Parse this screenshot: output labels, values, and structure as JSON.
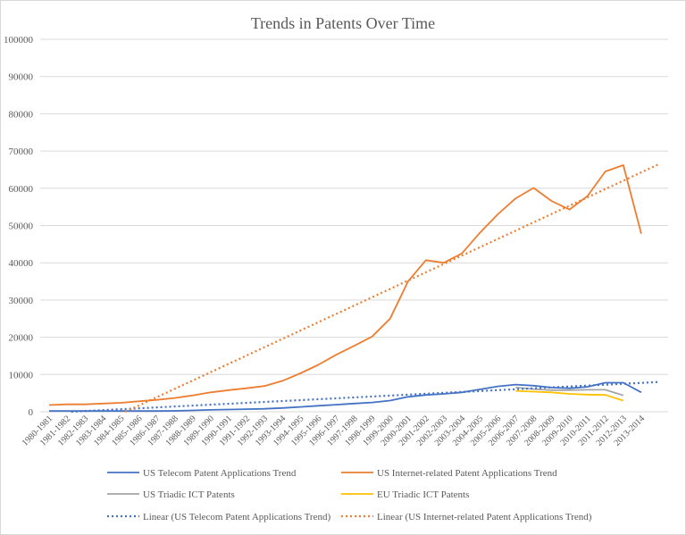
{
  "chart_data": {
    "type": "line",
    "title": "Trends in Patents Over Time",
    "xlabel": "",
    "ylabel": "",
    "ylim": [
      0,
      100000
    ],
    "yticks": [
      "0",
      "10000",
      "20000",
      "30000",
      "40000",
      "50000",
      "60000",
      "70000",
      "80000",
      "90000",
      "100000"
    ],
    "grid": true,
    "legend_position": "bottom",
    "categories": [
      "1980-1981",
      "1981-1982",
      "1982-1983",
      "1983-1984",
      "1984-1985",
      "1985-1986",
      "1986-1987",
      "1987-1988",
      "1988-1989",
      "1989-1990",
      "1990-1991",
      "1991-1992",
      "1992-1993",
      "1993-1994",
      "1994-1995",
      "1995-1996",
      "1996-1997",
      "1997-1998",
      "1998-1999",
      "1999-2000",
      "2000-2001",
      "2001-2002",
      "2002-2003",
      "2003-2004",
      "2004-2005",
      "2005-2006",
      "2006-2007",
      "2007-2008",
      "2008-2009",
      "2009-2010",
      "2010-2011",
      "2011-2012",
      "2012-2013",
      "2013-2014"
    ],
    "series": [
      {
        "name": "US Telecom Patent Applications Trend",
        "color": "#4472c4",
        "style": "solid",
        "values": [
          200,
          200,
          200,
          200,
          200,
          200,
          200,
          250,
          350,
          500,
          600,
          700,
          800,
          1000,
          1300,
          1600,
          1900,
          2200,
          2500,
          3000,
          4000,
          4500,
          4800,
          5200,
          6000,
          6800,
          7300,
          7000,
          6500,
          6300,
          6700,
          7800,
          7800,
          5200
        ]
      },
      {
        "name": "US Internet-related Patent Applications Trend",
        "color": "#ed7d31",
        "style": "solid",
        "values": [
          1800,
          2000,
          2000,
          2200,
          2400,
          2800,
          3200,
          3700,
          4400,
          5200,
          5800,
          6300,
          6900,
          8300,
          10300,
          12600,
          15300,
          17700,
          20200,
          25000,
          35000,
          40700,
          40000,
          42500,
          48000,
          53000,
          57300,
          60100,
          56600,
          54300,
          57900,
          64500,
          66200,
          47800
        ]
      },
      {
        "name": "US Triadic ICT Patents",
        "color": "#a5a5a5",
        "style": "solid",
        "values": [
          null,
          null,
          null,
          null,
          null,
          null,
          null,
          null,
          null,
          null,
          null,
          null,
          null,
          null,
          null,
          null,
          null,
          null,
          null,
          null,
          null,
          null,
          null,
          null,
          null,
          null,
          6500,
          6100,
          5800,
          5800,
          5900,
          5900,
          4400,
          null
        ]
      },
      {
        "name": "EU Triadic ICT Patents",
        "color": "#ffc000",
        "style": "solid",
        "values": [
          null,
          null,
          null,
          null,
          null,
          null,
          null,
          null,
          null,
          null,
          null,
          null,
          null,
          null,
          null,
          null,
          null,
          null,
          null,
          null,
          null,
          null,
          null,
          null,
          null,
          null,
          5600,
          5400,
          5200,
          4800,
          4600,
          4500,
          3000,
          null
        ]
      },
      {
        "name": "Linear  (US Telecom Patent Applications Trend)",
        "color": "#4472c4",
        "style": "dotted",
        "trend_start": -300,
        "trend_end": 8000
      },
      {
        "name": "Linear  (US Internet-related Patent Applications Trend)",
        "color": "#ed7d31",
        "style": "dotted",
        "trend_start": -9500,
        "trend_end": 66500
      }
    ]
  }
}
